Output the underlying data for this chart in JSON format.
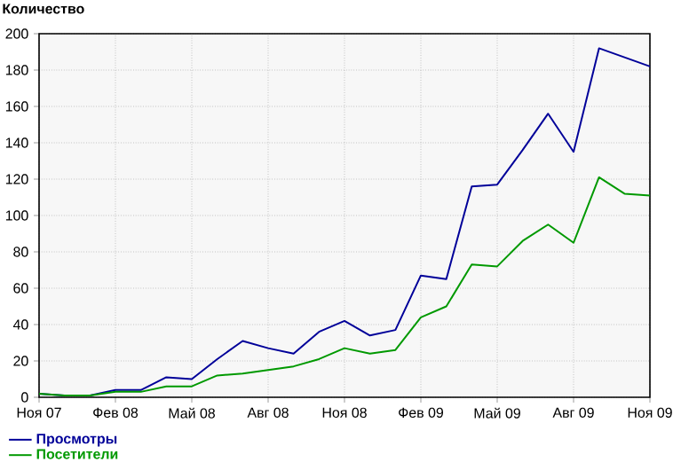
{
  "chart_data": {
    "type": "line",
    "title": "Количество",
    "x": [
      "2007-11",
      "2007-12",
      "2008-01",
      "2008-02",
      "2008-03",
      "2008-04",
      "2008-05",
      "2008-06",
      "2008-07",
      "2008-08",
      "2008-09",
      "2008-10",
      "2008-11",
      "2008-12",
      "2009-01",
      "2009-02",
      "2009-03",
      "2009-04",
      "2009-05",
      "2009-06",
      "2009-07",
      "2009-08",
      "2009-09",
      "2009-10",
      "2009-11"
    ],
    "series": [
      {
        "name": "Просмотры",
        "color": "#000099",
        "values": [
          2,
          1,
          1,
          4,
          4,
          11,
          10,
          21,
          31,
          27,
          24,
          36,
          42,
          34,
          37,
          67,
          65,
          116,
          117,
          136,
          156,
          135,
          192,
          187,
          182
        ]
      },
      {
        "name": "Посетители",
        "color": "#009900",
        "values": [
          2,
          1,
          1,
          3,
          3,
          6,
          6,
          12,
          13,
          15,
          17,
          21,
          27,
          24,
          26,
          44,
          50,
          73,
          72,
          86,
          95,
          85,
          121,
          112,
          111
        ]
      }
    ],
    "xlim": [
      "2007-11",
      "2009-11"
    ],
    "xticks": [
      {
        "value": "2007-11",
        "label": "Ноя 07"
      },
      {
        "value": "2008-02",
        "label": "Фев 08"
      },
      {
        "value": "2008-05",
        "label": "Май 08"
      },
      {
        "value": "2008-08",
        "label": "Авг 08"
      },
      {
        "value": "2008-11",
        "label": "Ноя 08"
      },
      {
        "value": "2009-02",
        "label": "Фев 09"
      },
      {
        "value": "2009-05",
        "label": "Май 09"
      },
      {
        "value": "2009-08",
        "label": "Авг 09"
      },
      {
        "value": "2009-11",
        "label": "Ноя 09"
      }
    ],
    "ylim": [
      0,
      200
    ],
    "yticks": [
      0,
      20,
      40,
      60,
      80,
      100,
      120,
      140,
      160,
      180,
      200
    ],
    "grid": true,
    "legend": "bottom left",
    "marker": "none",
    "line_style": "solid"
  }
}
